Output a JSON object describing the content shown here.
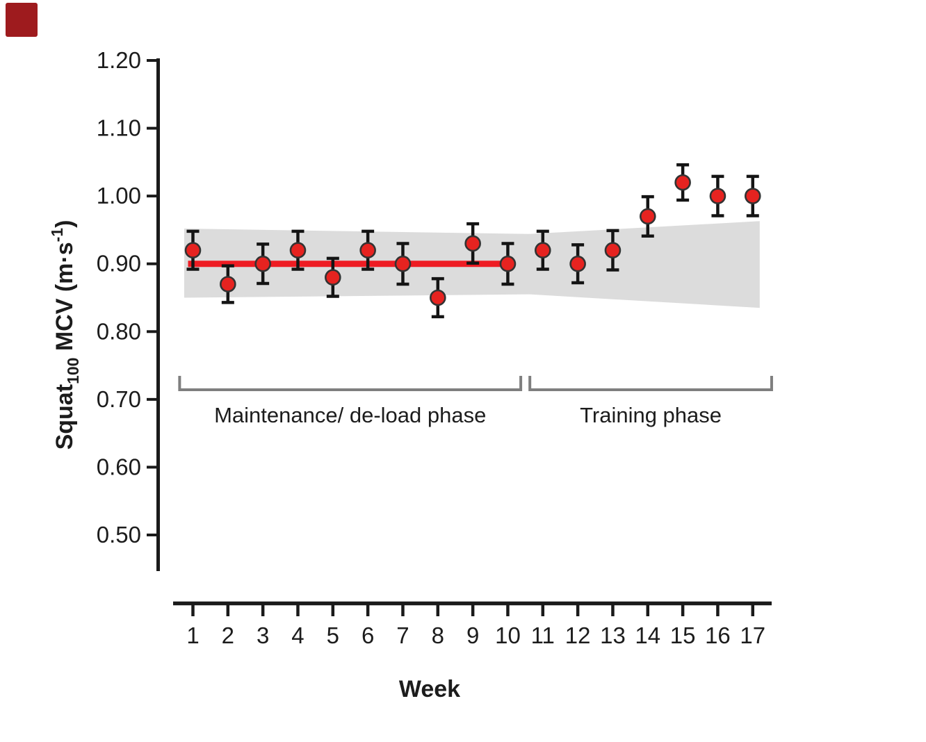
{
  "page": {
    "background": "#ffffff"
  },
  "corner_marker": {
    "color": "#9e1b1e"
  },
  "chart_data": {
    "type": "scatter",
    "title": "",
    "xlabel": "Week",
    "ylabel": "Squat100 MCV (m·s-1)",
    "ylabel_parts": [
      {
        "text": "Squat",
        "script": "normal"
      },
      {
        "text": "100",
        "script": "sub"
      },
      {
        "text": " MCV (m·s",
        "script": "normal"
      },
      {
        "text": "-1",
        "script": "sup"
      },
      {
        "text": ")",
        "script": "normal"
      }
    ],
    "x": [
      1,
      2,
      3,
      4,
      5,
      6,
      7,
      8,
      9,
      10,
      11,
      12,
      13,
      14,
      15,
      16,
      17
    ],
    "series": [
      {
        "name": "Squat100 MCV",
        "values": [
          0.92,
          0.87,
          0.9,
          0.92,
          0.88,
          0.92,
          0.9,
          0.85,
          0.93,
          0.9,
          0.92,
          0.9,
          0.92,
          0.97,
          1.02,
          1.0,
          1.0
        ],
        "errors": [
          0.028,
          0.027,
          0.029,
          0.028,
          0.028,
          0.028,
          0.03,
          0.028,
          0.029,
          0.03,
          0.028,
          0.028,
          0.029,
          0.029,
          0.026,
          0.029,
          0.029
        ]
      }
    ],
    "xlim": [
      0.43,
      17.55
    ],
    "ylim": [
      0.45,
      1.22
    ],
    "yticks": [
      0.5,
      0.6,
      0.7,
      0.8,
      0.9,
      1.0,
      1.1,
      1.2
    ],
    "ytick_labels": [
      "0.50",
      "0.60",
      "0.70",
      "0.80",
      "0.90",
      "1.00",
      "1.10",
      "1.20"
    ],
    "xtick_labels": [
      "1",
      "2",
      "3",
      "4",
      "5",
      "6",
      "7",
      "8",
      "9",
      "10",
      "11",
      "12",
      "13",
      "14",
      "15",
      "16",
      "17"
    ],
    "grid": false,
    "legend": "none",
    "marker": {
      "fill": "#e62320",
      "stroke": "#333333"
    },
    "error_bar_color": "#141414",
    "axis_color": "#1a1a1a",
    "reference_line": {
      "value": 0.9,
      "week_start": 1,
      "week_end": 10,
      "color": "#ee1c23"
    },
    "confidence_band": {
      "color": "#dcdcdc",
      "points": [
        {
          "x": 0.75,
          "top": 0.952,
          "bottom": 0.85
        },
        {
          "x": 10.6,
          "top": 0.944,
          "bottom": 0.855
        },
        {
          "x": 17.2,
          "top": 0.963,
          "bottom": 0.835
        }
      ]
    },
    "phase_brackets": [
      {
        "label": "Maintenance/ de-load phase",
        "week_start": 0.62,
        "week_end": 10.37
      },
      {
        "label": "Training phase",
        "week_start": 10.63,
        "week_end": 17.54
      }
    ],
    "bracket_color": "#7f7f7f",
    "text_color": "#1c1c1c"
  }
}
